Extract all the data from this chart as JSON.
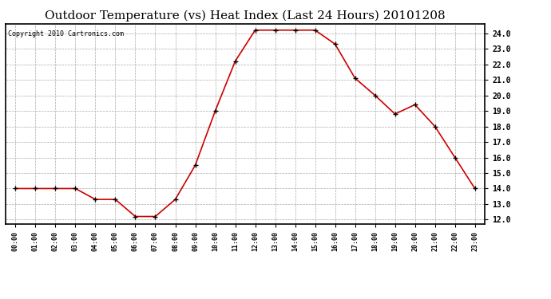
{
  "title": "Outdoor Temperature (vs) Heat Index (Last 24 Hours) 20101208",
  "copyright": "Copyright 2010 Cartronics.com",
  "x_labels": [
    "00:00",
    "01:00",
    "02:00",
    "03:00",
    "04:00",
    "05:00",
    "06:00",
    "07:00",
    "08:00",
    "09:00",
    "10:00",
    "11:00",
    "12:00",
    "13:00",
    "14:00",
    "15:00",
    "16:00",
    "17:00",
    "18:00",
    "19:00",
    "20:00",
    "21:00",
    "22:00",
    "23:00"
  ],
  "y_values": [
    14.0,
    14.0,
    14.0,
    14.0,
    13.3,
    13.3,
    12.2,
    12.2,
    13.3,
    15.5,
    19.0,
    22.2,
    24.2,
    24.2,
    24.2,
    24.2,
    23.3,
    21.1,
    20.0,
    18.8,
    19.4,
    18.0,
    16.0,
    14.0
  ],
  "line_color": "#cc0000",
  "marker_color": "#000000",
  "bg_color": "#ffffff",
  "grid_color": "#aaaaaa",
  "ylim": [
    11.7,
    24.6
  ],
  "yticks": [
    12.0,
    13.0,
    14.0,
    15.0,
    16.0,
    17.0,
    18.0,
    19.0,
    20.0,
    21.0,
    22.0,
    23.0,
    24.0
  ],
  "title_fontsize": 11,
  "copyright_fontsize": 6,
  "tick_fontsize": 7,
  "xtick_fontsize": 6
}
